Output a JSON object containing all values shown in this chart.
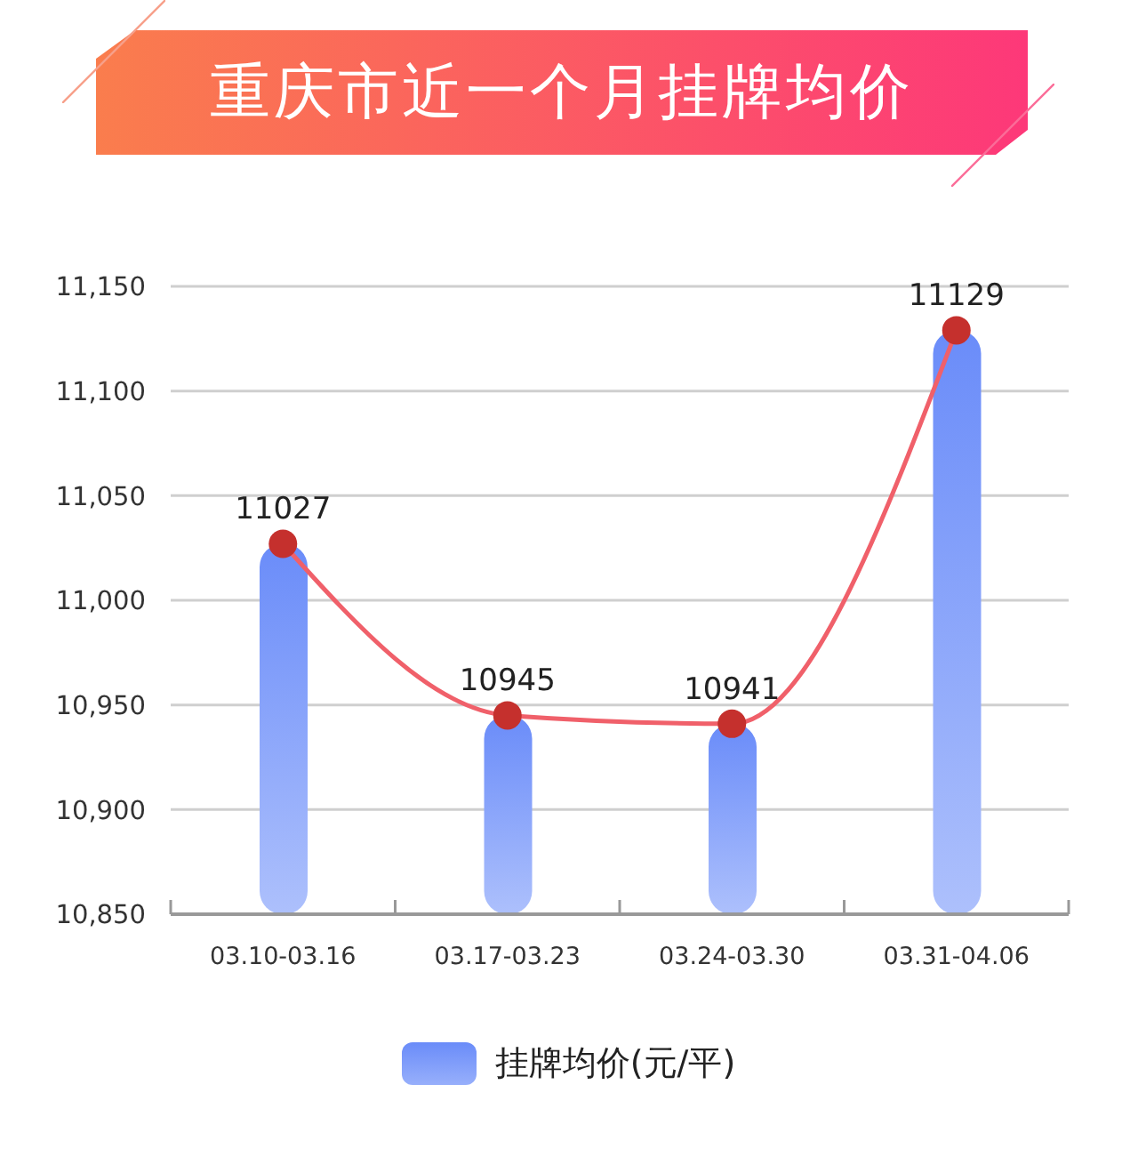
{
  "chart_data": {
    "type": "bar",
    "title": "重庆市近一个月挂牌均价",
    "categories": [
      "03.10-03.16",
      "03.17-03.23",
      "03.24-03.30",
      "03.31-04.06"
    ],
    "series": [
      {
        "name": "挂牌均价(元/平)",
        "color": "#6a8cf9",
        "values": [
          11027,
          10945,
          10941,
          11129
        ]
      },
      {
        "type": "line",
        "color": "#f0606a",
        "colors": [
          "#c5302d",
          "#c5302d",
          "#c5302d",
          "#c5302d"
        ],
        "marker": "circle",
        "values": [
          11027,
          10945,
          10941,
          11129
        ],
        "value_labels": [
          "11027",
          "10945",
          "10941",
          "11129"
        ]
      }
    ],
    "ylim": [
      10850,
      11150
    ],
    "yticks": [
      {
        "value": 10850,
        "label": "10,850"
      },
      {
        "value": 10900,
        "label": "10,900"
      },
      {
        "value": 10950,
        "label": "10,950"
      },
      {
        "value": 11000,
        "label": "11,000"
      },
      {
        "value": 11050,
        "label": "11,050"
      },
      {
        "value": 11100,
        "label": "11,100"
      },
      {
        "value": 11150,
        "label": "11,150"
      }
    ],
    "grid": "y",
    "legend": "bottom"
  }
}
